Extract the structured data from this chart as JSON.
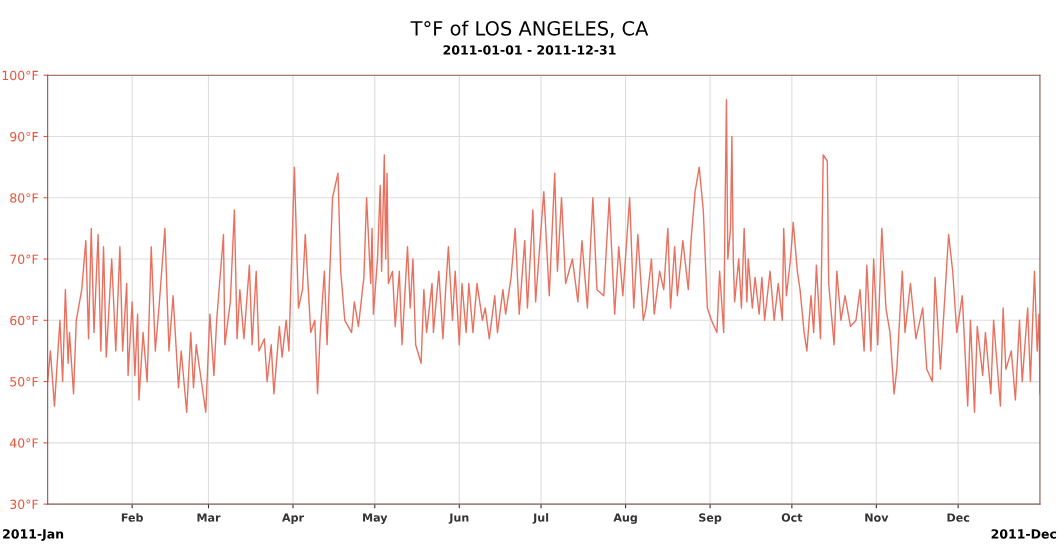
{
  "chart_data": {
    "type": "line",
    "title": "T°F of LOS ANGELES, CA",
    "subtitle": "2011-01-01 - 2011-12-31",
    "annotations": [
      "2011-Jan",
      "2011-Dec"
    ],
    "xlim": [
      "2011-01-01",
      "2011-12-31"
    ],
    "xticks": [
      {
        "value": "2011-02-01",
        "label": "Feb"
      },
      {
        "value": "2011-03-01",
        "label": "Mar"
      },
      {
        "value": "2011-04-01",
        "label": "Apr"
      },
      {
        "value": "2011-05-01",
        "label": "May"
      },
      {
        "value": "2011-06-01",
        "label": "Jun"
      },
      {
        "value": "2011-07-01",
        "label": "Jul"
      },
      {
        "value": "2011-08-01",
        "label": "Aug"
      },
      {
        "value": "2011-09-01",
        "label": "Sep"
      },
      {
        "value": "2011-10-01",
        "label": "Oct"
      },
      {
        "value": "2011-11-01",
        "label": "Nov"
      },
      {
        "value": "2011-12-01",
        "label": "Dec"
      }
    ],
    "ylim": [
      30,
      100
    ],
    "yticks": [
      {
        "value": 30,
        "label": "30°F"
      },
      {
        "value": 40,
        "label": "40°F"
      },
      {
        "value": 50,
        "label": "50°F"
      },
      {
        "value": 60,
        "label": "60°F"
      },
      {
        "value": 70,
        "label": "70°F"
      },
      {
        "value": 80,
        "label": "80°F"
      },
      {
        "value": 90,
        "label": "90°F"
      },
      {
        "value": 100,
        "label": "100°F"
      }
    ],
    "grid": true,
    "marker": "none",
    "line_style": "solid",
    "series": [
      {
        "color": "#e8705e",
        "x": [
          "2011-01-01",
          "2011-01-02",
          "2011-01-03T12:00",
          "2011-01-05T12:00",
          "2011-01-06T12:00",
          "2011-01-07T12:00",
          "2011-01-08T12:00",
          "2011-01-09",
          "2011-01-10T12:00",
          "2011-01-11T12:00",
          "2011-01-13T12:00",
          "2011-01-15",
          "2011-01-16",
          "2011-01-17",
          "2011-01-18",
          "2011-01-19T12:00",
          "2011-01-20T12:00",
          "2011-01-21T12:00",
          "2011-01-22T12:00",
          "2011-01-24T12:00",
          "2011-01-26",
          "2011-01-27T12:00",
          "2011-01-28T12:00",
          "2011-01-30",
          "2011-01-30T12:00",
          "2011-02-01",
          "2011-02-02",
          "2011-02-03",
          "2011-02-03T12:00",
          "2011-02-05",
          "2011-02-06T12:00",
          "2011-02-08",
          "2011-02-09T12:00",
          "2011-02-11",
          "2011-02-13",
          "2011-02-14T12:00",
          "2011-02-16",
          "2011-02-18",
          "2011-02-19",
          "2011-02-21",
          "2011-02-22T12:00",
          "2011-02-23T12:00",
          "2011-02-24T12:00",
          "2011-02-28",
          "2011-03-01T12:00",
          "2011-03-03",
          "2011-03-04",
          "2011-03-06T12:00",
          "2011-03-07",
          "2011-03-09",
          "2011-03-10T12:00",
          "2011-03-11T12:00",
          "2011-03-12T12:00",
          "2011-03-14",
          "2011-03-16",
          "2011-03-17",
          "2011-03-18T12:00",
          "2011-03-19T12:00",
          "2011-03-21T12:00",
          "2011-03-22T12:00",
          "2011-03-24",
          "2011-03-25",
          "2011-03-27",
          "2011-03-28",
          "2011-03-29T12:00",
          "2011-03-30T12:00",
          "2011-04-01T12:00",
          "2011-04-03",
          "2011-04-04T12:00",
          "2011-04-05T12:00",
          "2011-04-07T12:00",
          "2011-04-09",
          "2011-04-10",
          "2011-04-11",
          "2011-04-12T12:00",
          "2011-04-13T12:00",
          "2011-04-15T12:00",
          "2011-04-17T12:00",
          "2011-04-18T12:00",
          "2011-04-20",
          "2011-04-22T12:00",
          "2011-04-23T12:00",
          "2011-04-25",
          "2011-04-27",
          "2011-04-28",
          "2011-04-29T12:00",
          "2011-04-30",
          "2011-04-30T12:00",
          "2011-05-02",
          "2011-05-03",
          "2011-05-03T12:00",
          "2011-05-04T12:00",
          "2011-05-05",
          "2011-05-05T12:00",
          "2011-05-06",
          "2011-05-07T12:00",
          "2011-05-08T12:00",
          "2011-05-10",
          "2011-05-11",
          "2011-05-13",
          "2011-05-14",
          "2011-05-15",
          "2011-05-16",
          "2011-05-18",
          "2011-05-19",
          "2011-05-20",
          "2011-05-22",
          "2011-05-22T12:00",
          "2011-05-24T12:00",
          "2011-05-26",
          "2011-05-27",
          "2011-05-28",
          "2011-05-29T12:00",
          "2011-05-30T12:00",
          "2011-06-01",
          "2011-06-02",
          "2011-06-03T12:00",
          "2011-06-04T12:00",
          "2011-06-06",
          "2011-06-07T12:00",
          "2011-06-09T12:00",
          "2011-06-10T12:00",
          "2011-06-12",
          "2011-06-14",
          "2011-06-15",
          "2011-06-17",
          "2011-06-18",
          "2011-06-20",
          "2011-06-21T12:00",
          "2011-06-23",
          "2011-06-25",
          "2011-06-26",
          "2011-06-28",
          "2011-06-29",
          "2011-07-02",
          "2011-07-04",
          "2011-07-06",
          "2011-07-07",
          "2011-07-08T12:00",
          "2011-07-10",
          "2011-07-12T12:00",
          "2011-07-14T12:00",
          "2011-07-16",
          "2011-07-18",
          "2011-07-20",
          "2011-07-21T12:00",
          "2011-07-24",
          "2011-07-26",
          "2011-07-28",
          "2011-07-29T12:00",
          "2011-07-31",
          "2011-08-02T12:00",
          "2011-08-04",
          "2011-08-05T12:00",
          "2011-08-07T12:00",
          "2011-08-08T12:00",
          "2011-08-10T12:00",
          "2011-08-11T12:00",
          "2011-08-13T12:00",
          "2011-08-15",
          "2011-08-16T12:00",
          "2011-08-17T12:00",
          "2011-08-19",
          "2011-08-20",
          "2011-08-22",
          "2011-08-24",
          "2011-08-25",
          "2011-08-26T12:00",
          "2011-08-28",
          "2011-08-29T12:00",
          "2011-08-31",
          "2011-09-01T12:00",
          "2011-09-03T12:00",
          "2011-09-04T12:00",
          "2011-09-06",
          "2011-09-06T12:00",
          "2011-09-07",
          "2011-09-07T12:00",
          "2011-09-08T12:00",
          "2011-09-09",
          "2011-09-09T12:00",
          "2011-09-10",
          "2011-09-11T12:00",
          "2011-09-12T12:00",
          "2011-09-13T12:00",
          "2011-09-14T12:00",
          "2011-09-15",
          "2011-09-16T12:00",
          "2011-09-17T12:00",
          "2011-09-19",
          "2011-09-20",
          "2011-09-21",
          "2011-09-23",
          "2011-09-24T12:00",
          "2011-09-26",
          "2011-09-27T12:00",
          "2011-09-28",
          "2011-09-29",
          "2011-09-30T12:00",
          "2011-10-01T12:00",
          "2011-10-03",
          "2011-10-04",
          "2011-10-05T12:00",
          "2011-10-06T12:00",
          "2011-10-08",
          "2011-10-09",
          "2011-10-10",
          "2011-10-11T12:00",
          "2011-10-12T12:00",
          "2011-10-14",
          "2011-10-14T12:00",
          "2011-10-16T12:00",
          "2011-10-17T12:00",
          "2011-10-19",
          "2011-10-20T12:00",
          "2011-10-22T12:00",
          "2011-10-24T12:00",
          "2011-10-26",
          "2011-10-27T12:00",
          "2011-10-28T12:00",
          "2011-10-30",
          "2011-10-31",
          "2011-11-01T12:00",
          "2011-11-03",
          "2011-11-04T12:00",
          "2011-11-06",
          "2011-11-07T12:00",
          "2011-11-08T12:00",
          "2011-11-10T12:00",
          "2011-11-11T12:00",
          "2011-11-13T12:00",
          "2011-11-15T12:00",
          "2011-11-18",
          "2011-11-19T12:00",
          "2011-11-21T12:00",
          "2011-11-22T12:00",
          "2011-11-24T12:00",
          "2011-11-27T12:00",
          "2011-11-29",
          "2011-11-30T12:00",
          "2011-12-02T12:00",
          "2011-12-04T12:00",
          "2011-12-05T12:00",
          "2011-12-07",
          "2011-12-08",
          "2011-12-10",
          "2011-12-11",
          "2011-12-13",
          "2011-12-14",
          "2011-12-16T12:00",
          "2011-12-17T12:00",
          "2011-12-18T12:00",
          "2011-12-20T12:00",
          "2011-12-22",
          "2011-12-23T12:00",
          "2011-12-24T12:00",
          "2011-12-26T12:00",
          "2011-12-27T12:00",
          "2011-12-29",
          "2011-12-30",
          "2011-12-30T16:00",
          "2011-12-31"
        ],
        "values": [
          50,
          55,
          46,
          60,
          50,
          65,
          53,
          58,
          48,
          60,
          65,
          73,
          57,
          75,
          58,
          74,
          55,
          72,
          54,
          70,
          55,
          72,
          55,
          66,
          51,
          63,
          51,
          61,
          47,
          58,
          50,
          72,
          55,
          63,
          75,
          55,
          64,
          49,
          55,
          45,
          58,
          49,
          56,
          45,
          61,
          51,
          60,
          74,
          56,
          63,
          78,
          57,
          65,
          57,
          69,
          56,
          68,
          55,
          57,
          50,
          56,
          48,
          59,
          54,
          60,
          55,
          85,
          62,
          65,
          74,
          58,
          60,
          48,
          58,
          68,
          56,
          80,
          84,
          68,
          60,
          58,
          63,
          59,
          67,
          80,
          66,
          75,
          61,
          70,
          82,
          68,
          87,
          70,
          84,
          66,
          68,
          59,
          68,
          56,
          72,
          62,
          70,
          56,
          53,
          65,
          58,
          66,
          58,
          68,
          57,
          65,
          72,
          60,
          68,
          56,
          66,
          58,
          66,
          58,
          66,
          60,
          62,
          57,
          64,
          58,
          65,
          61,
          67,
          75,
          61,
          73,
          62,
          78,
          63,
          81,
          64,
          84,
          68,
          80,
          66,
          70,
          63,
          73,
          62,
          80,
          65,
          64,
          80,
          61,
          72,
          64,
          80,
          62,
          74,
          60,
          62,
          70,
          61,
          68,
          65,
          75,
          62,
          72,
          64,
          73,
          65,
          73,
          81,
          85,
          78,
          62,
          60,
          58,
          68,
          58,
          78,
          96,
          70,
          75,
          90,
          70,
          63,
          70,
          62,
          75,
          63,
          70,
          62,
          67,
          61,
          67,
          60,
          68,
          60,
          66,
          60,
          75,
          64,
          70,
          76,
          68,
          65,
          58,
          55,
          64,
          58,
          69,
          57,
          87,
          86,
          66,
          56,
          68,
          60,
          64,
          59,
          60,
          65,
          55,
          69,
          55,
          70,
          56,
          75,
          62,
          58,
          48,
          52,
          68,
          58,
          66,
          57,
          62,
          52,
          50,
          67,
          52,
          74,
          68,
          58,
          64,
          46,
          60,
          45,
          59,
          51,
          58,
          48,
          60,
          46,
          62,
          52,
          55,
          47,
          60,
          50,
          62,
          50,
          68,
          55,
          61,
          48
        ]
      }
    ]
  }
}
